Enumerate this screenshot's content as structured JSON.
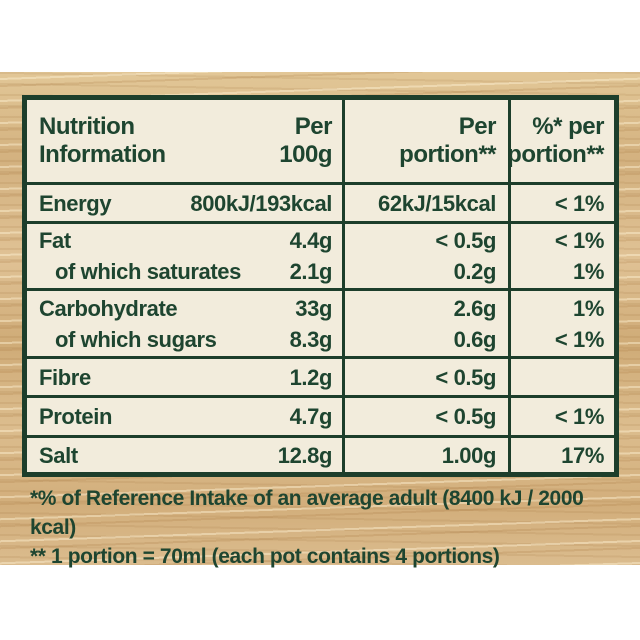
{
  "label": {
    "colors": {
      "green_border": "#1d3e2b",
      "green_text": "#1e4530",
      "cream_panel": "#f2ecdc",
      "wood_base": "#d8b685",
      "page_background": "#ffffff"
    },
    "header": {
      "title_line1": "Nutrition",
      "title_line2": "Information",
      "per100g_line1": "Per",
      "per100g_line2": "100g",
      "portion_line1": "Per",
      "portion_line2": "portion**",
      "pct_line1": "%* per",
      "pct_line2": "portion**"
    },
    "rows": [
      {
        "label": "Energy",
        "per_100g": "800kJ/193kcal",
        "per_portion": "62kJ/15kcal",
        "pct_portion": "< 1%"
      },
      {
        "label": "Fat",
        "per_100g": "4.4g",
        "per_portion": "< 0.5g",
        "pct_portion": "< 1%"
      },
      {
        "label": "of which saturates",
        "per_100g": "2.1g",
        "per_portion": "0.2g",
        "pct_portion": "1%"
      },
      {
        "label": "Carbohydrate",
        "per_100g": "33g",
        "per_portion": "2.6g",
        "pct_portion": "1%"
      },
      {
        "label": "of which sugars",
        "per_100g": "8.3g",
        "per_portion": "0.6g",
        "pct_portion": "< 1%"
      },
      {
        "label": "Fibre",
        "per_100g": "1.2g",
        "per_portion": "< 0.5g",
        "pct_portion": ""
      },
      {
        "label": "Protein",
        "per_100g": "4.7g",
        "per_portion": "< 0.5g",
        "pct_portion": "< 1%"
      },
      {
        "label": "Salt",
        "per_100g": "12.8g",
        "per_portion": "1.00g",
        "pct_portion": "17%"
      }
    ],
    "footnotes": [
      "*% of Reference Intake of an average adult (8400 kJ / 2000 kcal)",
      "** 1 portion = 70ml (each pot contains 4 portions)"
    ]
  }
}
